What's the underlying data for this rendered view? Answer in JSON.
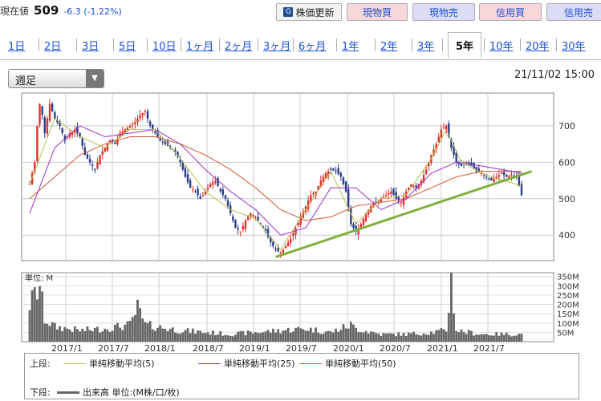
{
  "quote": {
    "label": "現在値",
    "price": "509",
    "change": "-6.3 (-1.22%)"
  },
  "toolbar": {
    "update": "株価更新",
    "genbutsu_buy": "現物買",
    "genbutsu_sell": "現物売",
    "shinyo_buy": "信用買",
    "shinyo_sell": "信用売"
  },
  "tabs": [
    "1日",
    "2日",
    "3日",
    "5日",
    "10日",
    "1ヶ月",
    "2ヶ月",
    "3ヶ月",
    "6ヶ月",
    "1年",
    "2年",
    "3年",
    "5年",
    "10年",
    "20年",
    "30年"
  ],
  "active_tab": "5年",
  "select": {
    "value": "週足"
  },
  "datetime": "21/11/02 15:00",
  "price_axis": [
    "700",
    "600",
    "500",
    "400"
  ],
  "volume_axis": [
    "350M",
    "300M",
    "250M",
    "200M",
    "150M",
    "100M",
    "50M"
  ],
  "volume_unit": "単位: M",
  "x_labels": [
    "2017/1",
    "2017/7",
    "2018/1",
    "2018/7",
    "2019/1",
    "2019/7",
    "2020/1",
    "2020/7",
    "2021/1",
    "2021/7"
  ],
  "legend": {
    "upper_label": "上段:",
    "lower_label": "下段:",
    "ma5": "単純移動平均(5)",
    "ma25": "単純移動平均(25)",
    "ma50": "単純移動平均(50)",
    "volume": "出来高 単位:(M株/口/枚)"
  },
  "colors": {
    "ma5": "#b5c24a",
    "ma25": "#9a2fc8",
    "ma50": "#d4522e",
    "trend": "#7fb03c",
    "up": "#e0322c",
    "down": "#2b3c8c",
    "volume": "#666666"
  },
  "chart_data": {
    "type": "candlestick",
    "interval": "weekly",
    "y_range": [
      330,
      790
    ],
    "volume_range": [
      0,
      370
    ],
    "price_ticks": [
      400,
      500,
      600,
      700
    ],
    "volume_ticks": [
      50,
      100,
      150,
      200,
      250,
      300,
      350
    ],
    "dates": [
      "2017/1",
      "2017/7",
      "2018/1",
      "2018/7",
      "2019/1",
      "2019/7",
      "2020/1",
      "2020/7",
      "2021/1",
      "2021/7"
    ],
    "close_path": [
      [
        0,
        540
      ],
      [
        2,
        600
      ],
      [
        3,
        700
      ],
      [
        4,
        760
      ],
      [
        5,
        730
      ],
      [
        6,
        680
      ],
      [
        7,
        720
      ],
      [
        8,
        760
      ],
      [
        9,
        740
      ],
      [
        10,
        720
      ],
      [
        12,
        700
      ],
      [
        14,
        660
      ],
      [
        16,
        680
      ],
      [
        18,
        690
      ],
      [
        20,
        670
      ],
      [
        22,
        620
      ],
      [
        24,
        600
      ],
      [
        26,
        580
      ],
      [
        28,
        620
      ],
      [
        30,
        640
      ],
      [
        32,
        660
      ],
      [
        34,
        650
      ],
      [
        36,
        680
      ],
      [
        38,
        690
      ],
      [
        40,
        700
      ],
      [
        42,
        710
      ],
      [
        44,
        730
      ],
      [
        46,
        740
      ],
      [
        48,
        700
      ],
      [
        50,
        680
      ],
      [
        52,
        660
      ],
      [
        54,
        650
      ],
      [
        56,
        640
      ],
      [
        58,
        630
      ],
      [
        60,
        600
      ],
      [
        62,
        560
      ],
      [
        64,
        530
      ],
      [
        66,
        520
      ],
      [
        68,
        500
      ],
      [
        70,
        520
      ],
      [
        72,
        540
      ],
      [
        74,
        550
      ],
      [
        76,
        520
      ],
      [
        78,
        500
      ],
      [
        80,
        460
      ],
      [
        82,
        420
      ],
      [
        84,
        410
      ],
      [
        86,
        440
      ],
      [
        88,
        460
      ],
      [
        90,
        450
      ],
      [
        92,
        430
      ],
      [
        94,
        410
      ],
      [
        96,
        380
      ],
      [
        98,
        360
      ],
      [
        100,
        350
      ],
      [
        102,
        370
      ],
      [
        104,
        390
      ],
      [
        106,
        420
      ],
      [
        108,
        450
      ],
      [
        110,
        480
      ],
      [
        112,
        510
      ],
      [
        114,
        520
      ],
      [
        116,
        550
      ],
      [
        118,
        570
      ],
      [
        120,
        580
      ],
      [
        122,
        575
      ],
      [
        124,
        560
      ],
      [
        126,
        520
      ],
      [
        128,
        430
      ],
      [
        130,
        410
      ],
      [
        132,
        430
      ],
      [
        134,
        460
      ],
      [
        136,
        480
      ],
      [
        138,
        490
      ],
      [
        140,
        500
      ],
      [
        142,
        510
      ],
      [
        144,
        520
      ],
      [
        146,
        500
      ],
      [
        148,
        490
      ],
      [
        150,
        520
      ],
      [
        152,
        540
      ],
      [
        154,
        530
      ],
      [
        156,
        550
      ],
      [
        158,
        580
      ],
      [
        160,
        620
      ],
      [
        162,
        650
      ],
      [
        164,
        690
      ],
      [
        166,
        700
      ],
      [
        168,
        640
      ],
      [
        170,
        600
      ],
      [
        172,
        590
      ],
      [
        174,
        600
      ],
      [
        176,
        590
      ],
      [
        178,
        575
      ],
      [
        180,
        570
      ],
      [
        182,
        560
      ],
      [
        184,
        550
      ],
      [
        186,
        560
      ],
      [
        188,
        570
      ],
      [
        190,
        560
      ],
      [
        192,
        565
      ],
      [
        194,
        560
      ],
      [
        196,
        509
      ]
    ],
    "ma5_path": [
      [
        0,
        540
      ],
      [
        10,
        720
      ],
      [
        20,
        670
      ],
      [
        30,
        640
      ],
      [
        40,
        690
      ],
      [
        50,
        690
      ],
      [
        60,
        610
      ],
      [
        70,
        520
      ],
      [
        80,
        470
      ],
      [
        90,
        445
      ],
      [
        100,
        360
      ],
      [
        110,
        470
      ],
      [
        120,
        575
      ],
      [
        130,
        430
      ],
      [
        140,
        500
      ],
      [
        150,
        510
      ],
      [
        160,
        610
      ],
      [
        166,
        690
      ],
      [
        172,
        600
      ],
      [
        182,
        565
      ],
      [
        196,
        535
      ]
    ],
    "ma25_path": [
      [
        0,
        460
      ],
      [
        10,
        640
      ],
      [
        20,
        700
      ],
      [
        30,
        670
      ],
      [
        40,
        680
      ],
      [
        50,
        690
      ],
      [
        60,
        650
      ],
      [
        70,
        580
      ],
      [
        80,
        520
      ],
      [
        90,
        470
      ],
      [
        100,
        400
      ],
      [
        110,
        420
      ],
      [
        120,
        530
      ],
      [
        130,
        530
      ],
      [
        140,
        470
      ],
      [
        150,
        500
      ],
      [
        160,
        570
      ],
      [
        170,
        600
      ],
      [
        180,
        590
      ],
      [
        196,
        570
      ]
    ],
    "ma50_path": [
      [
        0,
        500
      ],
      [
        10,
        560
      ],
      [
        20,
        620
      ],
      [
        30,
        650
      ],
      [
        40,
        670
      ],
      [
        50,
        670
      ],
      [
        60,
        650
      ],
      [
        70,
        620
      ],
      [
        80,
        580
      ],
      [
        90,
        530
      ],
      [
        100,
        470
      ],
      [
        110,
        440
      ],
      [
        120,
        450
      ],
      [
        130,
        480
      ],
      [
        140,
        490
      ],
      [
        150,
        500
      ],
      [
        160,
        530
      ],
      [
        170,
        560
      ],
      [
        180,
        575
      ],
      [
        196,
        575
      ]
    ],
    "trendline": [
      [
        98,
        340
      ],
      [
        200,
        575
      ]
    ],
    "volume_path": [
      [
        0,
        200
      ],
      [
        2,
        250
      ],
      [
        3,
        270
      ],
      [
        4,
        300
      ],
      [
        6,
        120
      ],
      [
        10,
        80
      ],
      [
        20,
        60
      ],
      [
        30,
        70
      ],
      [
        40,
        90
      ],
      [
        43,
        180
      ],
      [
        46,
        90
      ],
      [
        60,
        60
      ],
      [
        70,
        50
      ],
      [
        80,
        40
      ],
      [
        90,
        50
      ],
      [
        100,
        60
      ],
      [
        110,
        70
      ],
      [
        120,
        50
      ],
      [
        128,
        90
      ],
      [
        130,
        70
      ],
      [
        140,
        40
      ],
      [
        150,
        40
      ],
      [
        160,
        50
      ],
      [
        166,
        60
      ],
      [
        168,
        330
      ],
      [
        170,
        60
      ],
      [
        180,
        40
      ],
      [
        196,
        40
      ]
    ]
  }
}
